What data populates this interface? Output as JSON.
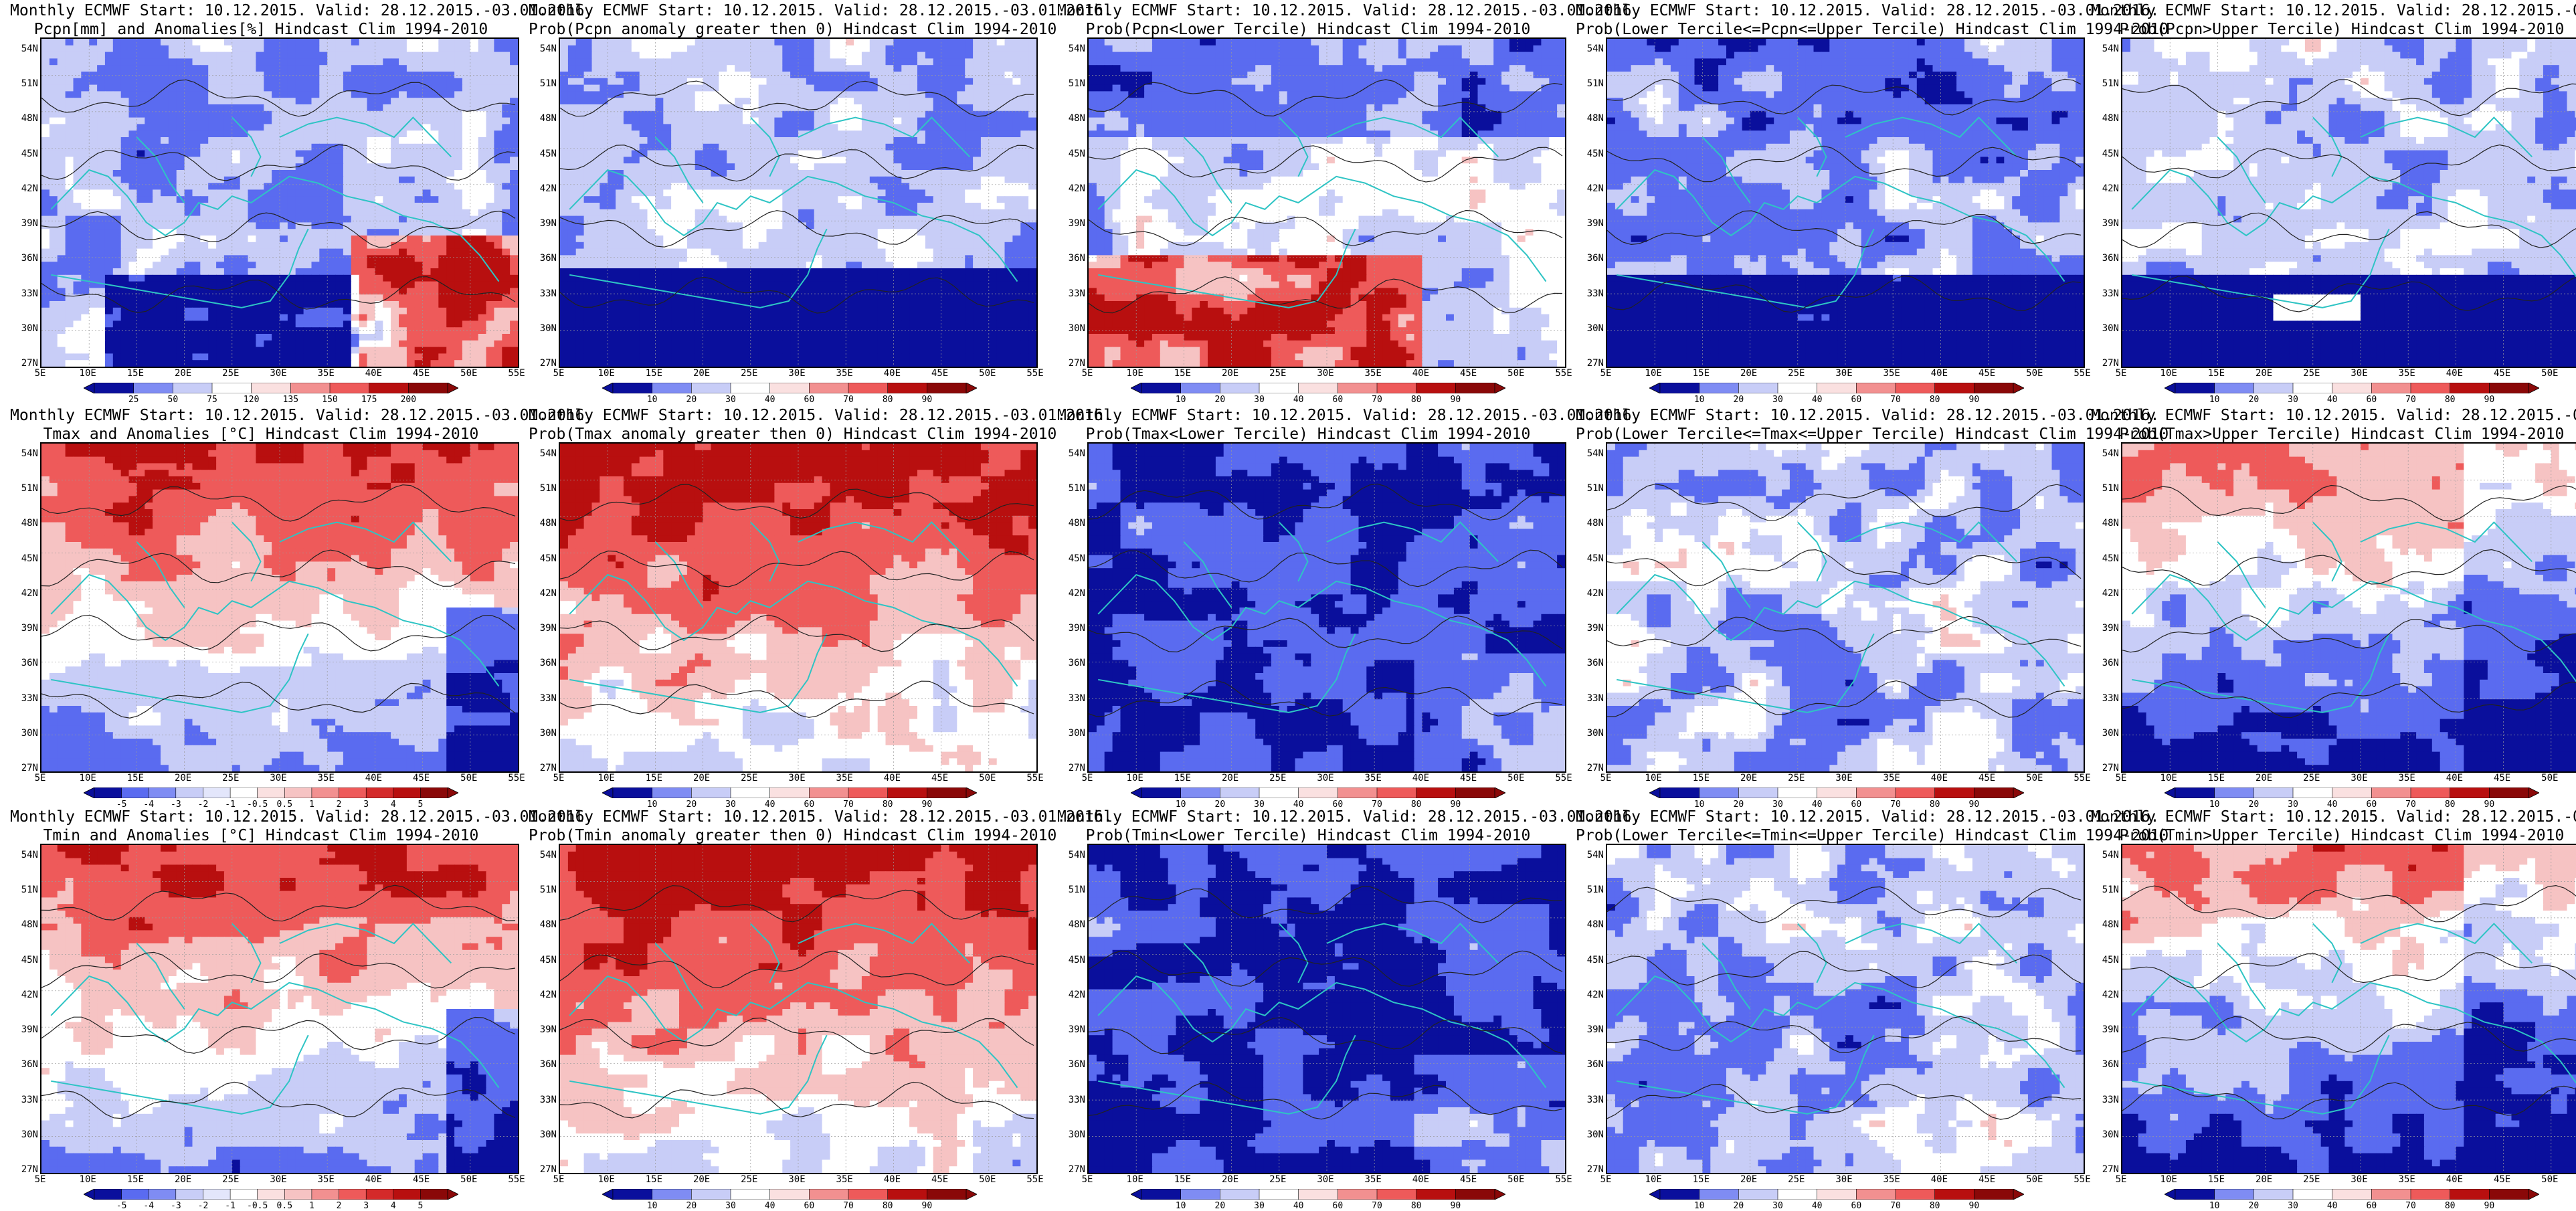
{
  "figure": {
    "title_prefix": "Monthly ECMWF Start: 10.12.2015. Valid: 28.12.2015.-03.01.2016.",
    "lat_labels": [
      "54N",
      "51N",
      "48N",
      "45N",
      "42N",
      "39N",
      "36N",
      "33N",
      "30N",
      "27N"
    ],
    "lon_labels": [
      "5E",
      "10E",
      "15E",
      "20E",
      "25E",
      "30E",
      "35E",
      "40E",
      "45E",
      "50E",
      "55E"
    ],
    "colors": {
      "land_outline": "#2ec4c4",
      "contour": "#222222",
      "blue_dark": "#0a0f9c",
      "blue_mid": "#5a6bf0",
      "blue_light": "#c8cdf7",
      "white": "#ffffff",
      "red_light": "#f6c3c3",
      "red_mid": "#ee5a5a",
      "red_dark": "#b80f0f"
    },
    "rows": [
      {
        "variable": "Pcpn",
        "panels": [
          {
            "subtitle": "Pcpn[mm] and Anomalies[%] Hindcast Clim 1994-2010",
            "pattern": "pcpn_anom",
            "colorbar": {
              "type": "diverging",
              "labels": [
                "25",
                "50",
                "75",
                "120",
                "135",
                "150",
                "175",
                "200"
              ]
            }
          },
          {
            "subtitle": "Prob(Pcpn anomaly greater then 0) Hindcast Clim 1994-2010",
            "pattern": "blue_south",
            "colorbar": {
              "type": "prob",
              "labels": [
                "10",
                "20",
                "30",
                "40",
                "60",
                "70",
                "80",
                "90"
              ]
            }
          },
          {
            "subtitle": "Prob(Pcpn<Lower Tercile) Hindcast Clim 1994-2010",
            "pattern": "red_south",
            "colorbar": {
              "type": "prob",
              "labels": [
                "10",
                "20",
                "30",
                "40",
                "60",
                "70",
                "80",
                "90"
              ]
            }
          },
          {
            "subtitle": "Prob(Lower Tercile<=Pcpn<=Upper Tercile) Hindcast Clim 1994-2010",
            "pattern": "blue_band",
            "colorbar": {
              "type": "prob",
              "labels": [
                "10",
                "20",
                "30",
                "40",
                "60",
                "70",
                "80",
                "90"
              ]
            }
          },
          {
            "subtitle": "Prob(Pcpn>Upper Tercile) Hindcast Clim 1994-2010",
            "pattern": "blue_south_light",
            "colorbar": {
              "type": "prob",
              "labels": [
                "10",
                "20",
                "30",
                "40",
                "60",
                "70",
                "80",
                "90"
              ]
            }
          }
        ]
      },
      {
        "variable": "Tmax",
        "panels": [
          {
            "subtitle": "Tmax and Anomalies [°C] Hindcast Clim 1994-2010",
            "pattern": "red_north",
            "colorbar": {
              "type": "diverging",
              "labels": [
                "-5",
                "-4",
                "-3",
                "-2",
                "-1",
                "-0.5",
                "0.5",
                "1",
                "2",
                "3",
                "4",
                "5"
              ]
            }
          },
          {
            "subtitle": "Prob(Tmax anomaly greater then 0) Hindcast Clim 1994-2010",
            "pattern": "red_north_strong",
            "colorbar": {
              "type": "prob",
              "labels": [
                "10",
                "20",
                "30",
                "40",
                "60",
                "70",
                "80",
                "90"
              ]
            }
          },
          {
            "subtitle": "Prob(Tmax<Lower Tercile) Hindcast Clim 1994-2010",
            "pattern": "blue_full",
            "colorbar": {
              "type": "prob",
              "labels": [
                "10",
                "20",
                "30",
                "40",
                "60",
                "70",
                "80",
                "90"
              ]
            }
          },
          {
            "subtitle": "Prob(Lower Tercile<=Tmax<=Upper Tercile) Hindcast Clim 1994-2010",
            "pattern": "blue_patchy",
            "colorbar": {
              "type": "prob",
              "labels": [
                "10",
                "20",
                "30",
                "40",
                "60",
                "70",
                "80",
                "90"
              ]
            }
          },
          {
            "subtitle": "Prob(Tmax>Upper Tercile) Hindcast Clim 1994-2010",
            "pattern": "red_north_blue_south",
            "colorbar": {
              "type": "prob",
              "labels": [
                "10",
                "20",
                "30",
                "40",
                "60",
                "70",
                "80",
                "90"
              ]
            }
          }
        ]
      },
      {
        "variable": "Tmin",
        "panels": [
          {
            "subtitle": "Tmin and Anomalies [°C] Hindcast Clim 1994-2010",
            "pattern": "red_north",
            "colorbar": {
              "type": "diverging",
              "labels": [
                "-5",
                "-4",
                "-3",
                "-2",
                "-1",
                "-0.5",
                "0.5",
                "1",
                "2",
                "3",
                "4",
                "5"
              ]
            }
          },
          {
            "subtitle": "Prob(Tmin anomaly greater then 0) Hindcast Clim 1994-2010",
            "pattern": "red_north_strong",
            "colorbar": {
              "type": "prob",
              "labels": [
                "10",
                "20",
                "30",
                "40",
                "60",
                "70",
                "80",
                "90"
              ]
            }
          },
          {
            "subtitle": "Prob(Tmin<Lower Tercile) Hindcast Clim 1994-2010",
            "pattern": "blue_full",
            "colorbar": {
              "type": "prob",
              "labels": [
                "10",
                "20",
                "30",
                "40",
                "60",
                "70",
                "80",
                "90"
              ]
            }
          },
          {
            "subtitle": "Prob(Lower Tercile<=Tmin<=Upper Tercile) Hindcast Clim 1994-2010",
            "pattern": "blue_patchy",
            "colorbar": {
              "type": "prob",
              "labels": [
                "10",
                "20",
                "30",
                "40",
                "60",
                "70",
                "80",
                "90"
              ]
            }
          },
          {
            "subtitle": "Prob(Tmin>Upper Tercile) Hindcast Clim 1994-2010",
            "pattern": "red_north_blue_south",
            "colorbar": {
              "type": "prob",
              "labels": [
                "10",
                "20",
                "30",
                "40",
                "60",
                "70",
                "80",
                "90"
              ]
            }
          }
        ]
      }
    ]
  }
}
